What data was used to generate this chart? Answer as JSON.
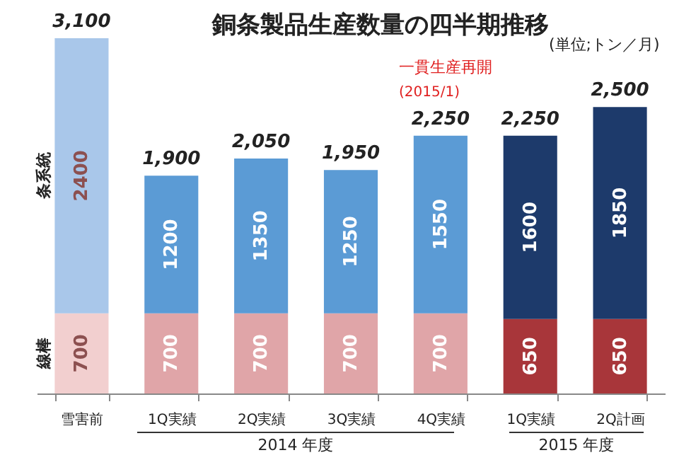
{
  "chart_data": {
    "type": "bar",
    "stacked": true,
    "title": "銅条製品生産数量の四半期推移",
    "categories": [
      "雪害前",
      "1Q実績",
      "2Q実績",
      "3Q実績",
      "4Q実績",
      "1Q実績",
      "2Q計画"
    ],
    "series": [
      {
        "name": "線棒",
        "colors": [
          "#f2cfcf",
          "#e0a5a8",
          "#e0a5a8",
          "#e0a5a8",
          "#e0a5a8",
          "#a8363a",
          "#a8363a"
        ],
        "values": [
          700,
          700,
          700,
          700,
          700,
          650,
          650
        ]
      },
      {
        "name": "条系統",
        "colors": [
          "#a9c7ea",
          "#5b9bd5",
          "#5b9bd5",
          "#5b9bd5",
          "#5b9bd5",
          "#1d3a6b",
          "#1d3a6b"
        ],
        "values": [
          2400,
          1200,
          1350,
          1250,
          1550,
          1600,
          1850
        ]
      }
    ],
    "data_labels": true,
    "totals": [
      "3,100",
      "1,900",
      "2,050",
      "1,950",
      "2,250",
      "2,250",
      "2,500"
    ],
    "grid": false,
    "annotations": [
      "(単位;トン／月)",
      "一貫生産再開",
      "(2015/1)",
      "2014 年度",
      "2015 年度"
    ]
  }
}
